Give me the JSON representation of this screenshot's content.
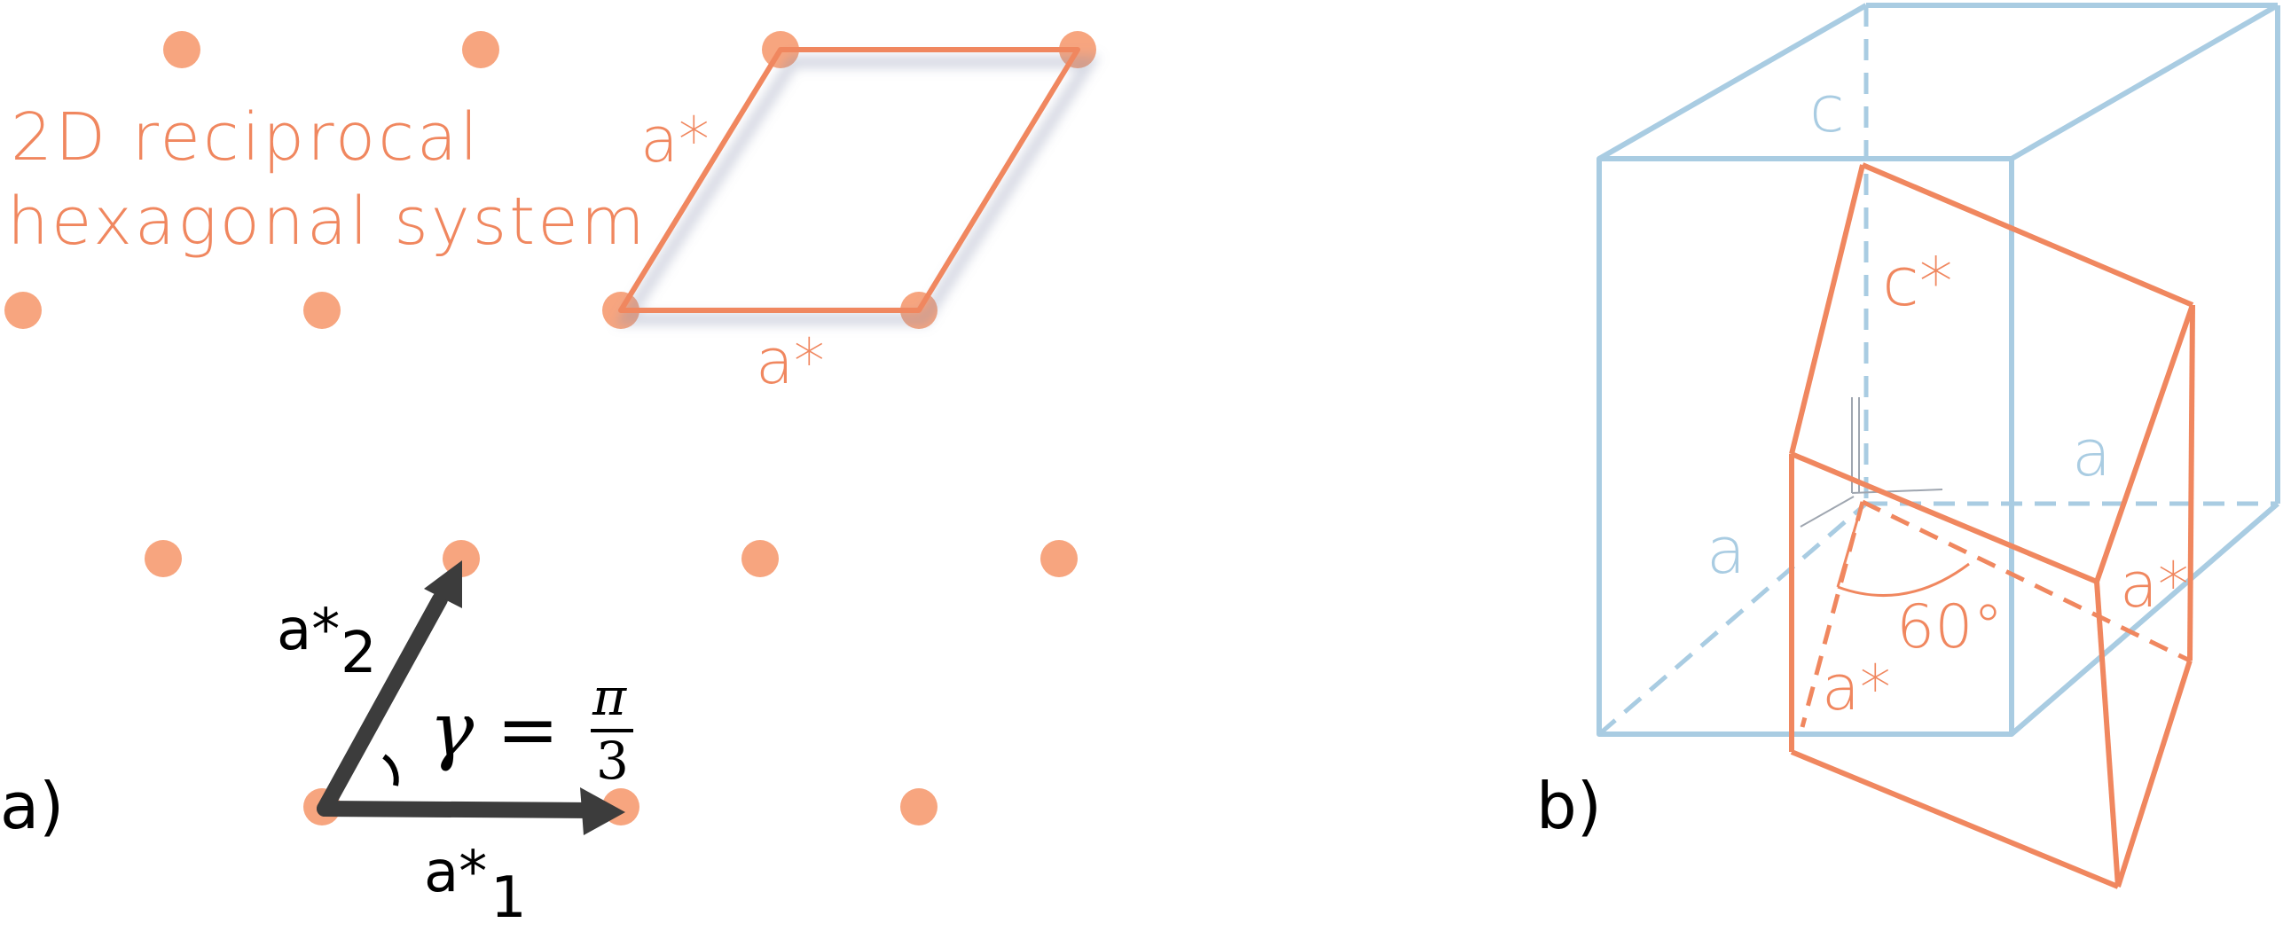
{
  "colors": {
    "orange": "#F0875F",
    "orange_dot": "#F7A57F",
    "blue": "#A9CCE2",
    "black": "#000000",
    "arrow": "#3C3C3C"
  },
  "panel_a": {
    "label": "a)",
    "title_line1": "2D reciprocal",
    "title_line2": "hexagonal system",
    "cell_label_left": "a*",
    "cell_label_bottom": "a*",
    "vector1_label": "a*",
    "vector1_sub": "1",
    "vector2_label": "a*",
    "vector2_sub": "2",
    "gamma_symbol": "γ",
    "equals": "=",
    "pi": "π",
    "three": "3"
  },
  "panel_b": {
    "label": "b)",
    "c_label": "c",
    "a_label_right": "a",
    "a_label_left": "a",
    "c_star_label": "c*",
    "a_star_right": "a*",
    "a_star_bottom": "a*",
    "angle_label": "60°"
  }
}
